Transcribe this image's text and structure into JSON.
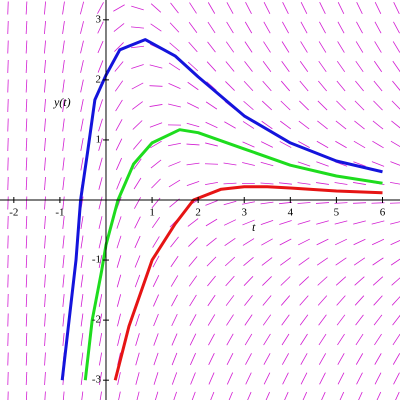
{
  "chart_data": {
    "type": "line",
    "x_label": "t",
    "y_label": "y(t)",
    "xlim": [
      -2.3,
      6.38
    ],
    "ylim": [
      -3.33,
      3.33
    ],
    "xticks": [
      -2,
      -1,
      1,
      2,
      3,
      4,
      5,
      6
    ],
    "yticks": [
      -3,
      -2,
      -1,
      1,
      2,
      3
    ],
    "field_color": "#d21ed2",
    "series": [
      {
        "color": "#1414dc",
        "x": [
          -0.95,
          -0.8,
          -0.65,
          -0.55,
          -0.4,
          -0.24,
          0,
          0.3,
          0.85,
          1.5,
          2,
          3,
          4,
          5,
          6
        ],
        "values": [
          -3,
          -2,
          -1,
          0,
          0.8,
          1.67,
          2.08,
          2.5,
          2.67,
          2.4,
          2.05,
          1.4,
          0.95,
          0.65,
          0.47
        ]
      },
      {
        "color": "#1edc1e",
        "x": [
          -0.45,
          -0.3,
          -0.1,
          0,
          0.26,
          0.6,
          1,
          1.6,
          2,
          3,
          4,
          5,
          6
        ],
        "values": [
          -3,
          -2,
          -1.2,
          -0.75,
          0,
          0.6,
          0.95,
          1.17,
          1.12,
          0.85,
          0.58,
          0.4,
          0.28
        ]
      },
      {
        "color": "#e61414",
        "x": [
          0.2,
          0.5,
          1,
          1.5,
          1.9,
          2.5,
          3,
          3.5,
          4,
          5,
          6
        ],
        "values": [
          -3,
          -2.1,
          -1,
          -0.4,
          0,
          0.18,
          0.22,
          0.22,
          0.2,
          0.15,
          0.12
        ]
      }
    ]
  }
}
